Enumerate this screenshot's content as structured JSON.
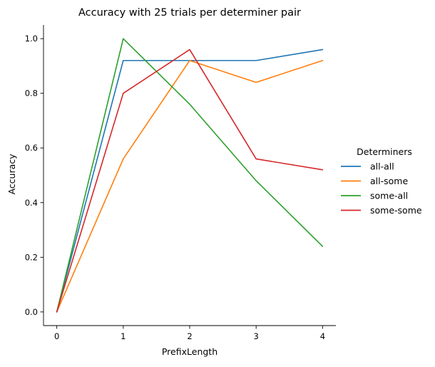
{
  "chart_data": {
    "type": "line",
    "title": "Accuracy with 25 trials per determiner pair",
    "xlabel": "PrefixLength",
    "ylabel": "Accuracy",
    "x": [
      0,
      1,
      2,
      3,
      4
    ],
    "xlim": [
      -0.2,
      4.2
    ],
    "ylim": [
      -0.05,
      1.05
    ],
    "x_ticks": [
      0,
      1,
      2,
      3,
      4
    ],
    "x_tick_labels": [
      "0",
      "1",
      "2",
      "3",
      "4"
    ],
    "y_ticks": [
      0.0,
      0.2,
      0.4,
      0.6,
      0.8,
      1.0
    ],
    "y_tick_labels": [
      "0.0",
      "0.2",
      "0.4",
      "0.6",
      "0.8",
      "1.0"
    ],
    "grid": false,
    "legend": {
      "title": "Determiners",
      "placement": "right"
    },
    "series": [
      {
        "name": "all-all",
        "color": "#1f77b4",
        "values": [
          0.0,
          0.92,
          0.92,
          0.92,
          0.96
        ]
      },
      {
        "name": "all-some",
        "color": "#ff7f0e",
        "values": [
          0.0,
          0.56,
          0.92,
          0.84,
          0.92
        ]
      },
      {
        "name": "some-all",
        "color": "#2ca02c",
        "values": [
          0.0,
          1.0,
          0.76,
          0.48,
          0.24
        ]
      },
      {
        "name": "some-some",
        "color": "#d62728",
        "values": [
          0.0,
          0.8,
          0.96,
          0.56,
          0.52
        ]
      }
    ]
  }
}
